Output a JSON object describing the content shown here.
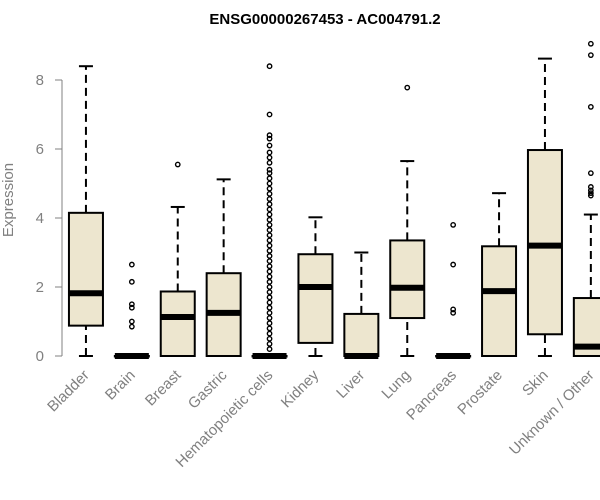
{
  "chart_data": {
    "type": "boxplot",
    "title": "ENSG00000267453 - AC004791.2",
    "xlabel": "",
    "ylabel": "Expression",
    "ylim": [
      0,
      9
    ],
    "yticks": [
      0,
      2,
      4,
      6,
      8
    ],
    "grid": false,
    "legend": "none",
    "box_fill": "#ede6cf",
    "categories": [
      "Bladder",
      "Brain",
      "Breast",
      "Gastric",
      "Hematopoietic cells",
      "Kidney",
      "Liver",
      "Lung",
      "Pancreas",
      "Prostate",
      "Skin",
      "Unknown / Other"
    ],
    "boxes": [
      {
        "min": 0,
        "q1": 0.88,
        "median": 1.82,
        "q3": 4.15,
        "max": 8.4,
        "outliers": []
      },
      {
        "min": 0,
        "q1": 0,
        "median": 0,
        "q3": 0,
        "max": 0,
        "outliers": [
          2.65,
          2.15,
          1.5,
          1.4,
          1.0,
          0.85
        ]
      },
      {
        "min": 0,
        "q1": 0,
        "median": 1.13,
        "q3": 1.87,
        "max": 4.32,
        "outliers": [
          5.55
        ]
      },
      {
        "min": 0,
        "q1": 0,
        "median": 1.25,
        "q3": 2.4,
        "max": 5.12,
        "outliers": []
      },
      {
        "min": 0,
        "q1": 0,
        "median": 0,
        "q3": 0,
        "max": 0,
        "outliers": [
          8.4,
          7.0,
          6.4,
          6.3,
          6.1,
          5.9,
          5.75,
          5.6,
          5.4,
          5.3,
          5.15,
          5.0,
          4.85,
          4.7,
          4.55,
          4.4,
          4.25,
          4.1,
          3.95,
          3.8,
          3.65,
          3.5,
          3.35,
          3.2,
          3.05,
          2.9,
          2.75,
          2.6,
          2.45,
          2.3,
          2.15,
          2.0,
          1.85,
          1.7,
          1.55,
          1.4,
          1.25,
          1.1,
          0.95,
          0.8,
          0.65,
          0.5,
          0.35,
          0.2
        ]
      },
      {
        "min": 0,
        "q1": 0.38,
        "median": 2.0,
        "q3": 2.95,
        "max": 4.02,
        "outliers": []
      },
      {
        "min": 0,
        "q1": 0,
        "median": 0,
        "q3": 1.22,
        "max": 3.0,
        "outliers": []
      },
      {
        "min": 0,
        "q1": 1.1,
        "median": 1.98,
        "q3": 3.35,
        "max": 5.65,
        "outliers": [
          7.78
        ]
      },
      {
        "min": 0,
        "q1": 0,
        "median": 0,
        "q3": 0,
        "max": 0,
        "outliers": [
          3.8,
          2.65,
          1.35,
          1.25
        ]
      },
      {
        "min": 0,
        "q1": 0,
        "median": 1.88,
        "q3": 3.18,
        "max": 4.72,
        "outliers": []
      },
      {
        "min": 0,
        "q1": 0.63,
        "median": 3.2,
        "q3": 5.97,
        "max": 8.62,
        "outliers": []
      },
      {
        "min": 0,
        "q1": 0,
        "median": 0.27,
        "q3": 1.68,
        "max": 4.1,
        "outliers": [
          9.05,
          8.72,
          7.22,
          5.3,
          4.9,
          4.8,
          4.72,
          4.65
        ]
      }
    ]
  }
}
